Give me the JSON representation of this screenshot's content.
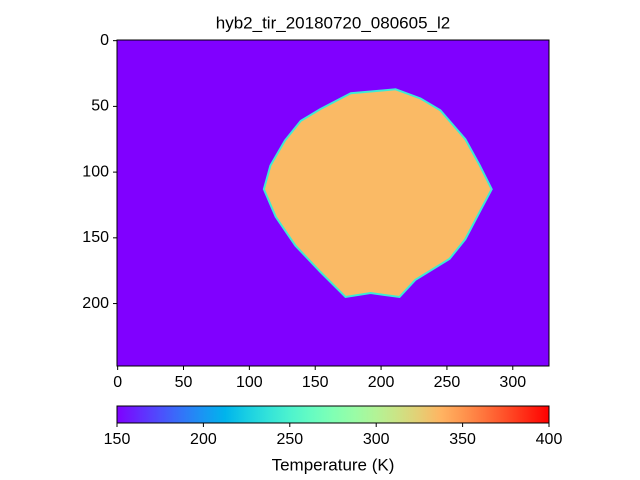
{
  "chart_data": {
    "type": "image",
    "title": "hyb2_tir_20180720_080605_l2",
    "xlim": [
      -0.5,
      327.5
    ],
    "ylim": [
      247.5,
      -0.5
    ],
    "xticks": [
      0,
      50,
      100,
      150,
      200,
      250,
      300
    ],
    "yticks": [
      0,
      50,
      100,
      150,
      200
    ],
    "colormap": "rainbow",
    "background_value": 150,
    "region": {
      "x": [
        154,
        177,
        211,
        230,
        245,
        264,
        275,
        284,
        275,
        264,
        252,
        226,
        214,
        192,
        173,
        154,
        135,
        120,
        111,
        116,
        127,
        139
      ],
      "y": [
        52,
        40,
        37,
        44,
        53,
        75,
        95,
        113,
        130,
        151,
        166,
        182,
        195,
        192,
        195,
        176,
        156,
        134,
        113,
        95,
        76,
        61
      ],
      "value": 335
    },
    "colorbar": {
      "label": "Temperature (K)",
      "clim": [
        150,
        400
      ],
      "ticks": [
        150,
        200,
        250,
        300,
        350,
        400
      ]
    }
  }
}
